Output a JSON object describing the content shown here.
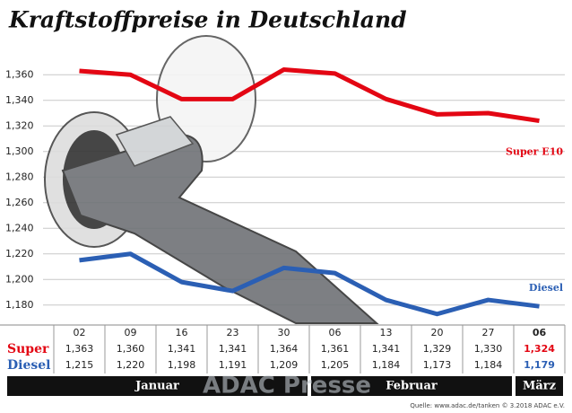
{
  "chart_data": {
    "type": "line",
    "title": "Kraftstoffpreise in Deutschland",
    "categories": [
      "02",
      "09",
      "16",
      "23",
      "30",
      "06",
      "13",
      "20",
      "27",
      "06"
    ],
    "category_groups": [
      "Januar",
      "Februar",
      "März"
    ],
    "series": [
      {
        "name": "Super E10",
        "row_label": "Super",
        "color": "#e30613",
        "values": [
          1.363,
          1.36,
          1.341,
          1.341,
          1.364,
          1.361,
          1.341,
          1.329,
          1.33,
          1.324
        ],
        "value_labels": [
          "1,363",
          "1,360",
          "1,341",
          "1,341",
          "1,364",
          "1,361",
          "1,341",
          "1,329",
          "1,330",
          "1,324"
        ]
      },
      {
        "name": "Diesel",
        "row_label": "Diesel",
        "color": "#2b5fb4",
        "values": [
          1.215,
          1.22,
          1.198,
          1.191,
          1.209,
          1.205,
          1.184,
          1.173,
          1.184,
          1.179
        ],
        "value_labels": [
          "1,215",
          "1,220",
          "1,198",
          "1,191",
          "1,209",
          "1,205",
          "1,184",
          "1,173",
          "1,184",
          "1,179"
        ]
      }
    ],
    "ylim": [
      1.17,
      1.37
    ],
    "yticks": [
      {
        "value": 1.18,
        "label": "1,180"
      },
      {
        "value": 1.2,
        "label": "1,200"
      },
      {
        "value": 1.22,
        "label": "1,220"
      },
      {
        "value": 1.24,
        "label": "1,240"
      },
      {
        "value": 1.26,
        "label": "1,260"
      },
      {
        "value": 1.28,
        "label": "1,280"
      },
      {
        "value": 1.3,
        "label": "1,300"
      },
      {
        "value": 1.32,
        "label": "1,320"
      },
      {
        "value": 1.34,
        "label": "1,340"
      },
      {
        "value": 1.36,
        "label": "1,360"
      }
    ],
    "grid": true,
    "watermark": "ADAC Presse",
    "source": "Quelle: www.adac.de/tanken  © 3.2018  ADAC e.V."
  }
}
